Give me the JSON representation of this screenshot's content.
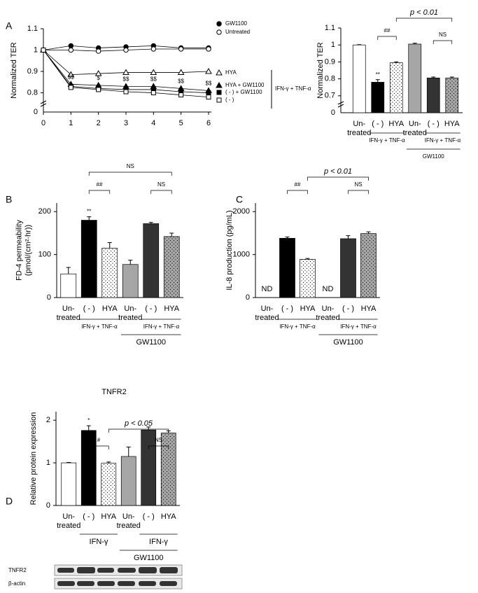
{
  "panel_labels": [
    "A",
    "B",
    "C",
    "D"
  ],
  "blot_labels": [
    "TNFR2",
    "β-actin"
  ],
  "chart_data": [
    {
      "type": "line",
      "ylabel": [
        "Normalized TER"
      ],
      "x": [
        0,
        1,
        2,
        3,
        4,
        5,
        6
      ],
      "xlim": [
        0,
        6
      ],
      "xticks": [
        0,
        1,
        2,
        3,
        4,
        5,
        6
      ],
      "ylim": [
        0.71,
        1.1
      ],
      "yticks": [
        0.8,
        0.9,
        1,
        1.1
      ],
      "y_origin_label": "0",
      "series": [
        {
          "name": "GW1100",
          "marker": "circle",
          "filled": true,
          "color": "#000000",
          "values": [
            1,
            1.02,
            1.01,
            1.015,
            1.02,
            1.01,
            1.01
          ]
        },
        {
          "name": "Untreated",
          "marker": "circle",
          "filled": false,
          "color": "#000000",
          "values": [
            1,
            1.0,
            0.995,
            1.0,
            1.005,
            1.005,
            1.005
          ]
        },
        {
          "name": "HYA",
          "marker": "triangle",
          "filled": false,
          "color": "#000000",
          "values": [
            1,
            0.885,
            0.89,
            0.895,
            0.895,
            0.895,
            0.9
          ]
        },
        {
          "name": "HYA + GW1100",
          "marker": "triangle",
          "filled": true,
          "color": "#000000",
          "values": [
            1,
            0.84,
            0.835,
            0.83,
            0.83,
            0.82,
            0.81
          ]
        },
        {
          "name": "( - ) + GW1100",
          "marker": "square",
          "filled": true,
          "color": "#000000",
          "values": [
            1,
            0.83,
            0.82,
            0.815,
            0.815,
            0.805,
            0.8
          ]
        },
        {
          "name": "( - )",
          "marker": "square",
          "filled": false,
          "color": "#000000",
          "values": [
            1,
            0.825,
            0.815,
            0.805,
            0.8,
            0.79,
            0.78
          ]
        }
      ],
      "annotations": [
        "$$",
        "$",
        "$$",
        "$$",
        "$$",
        "$$"
      ],
      "groups": [
        "IFN-γ + TNF-α"
      ]
    },
    {
      "type": "bar",
      "ylabel": [
        "Normalized TER"
      ],
      "categories": [
        [
          "Un-",
          "treated"
        ],
        [
          "( - )"
        ],
        [
          "HYA"
        ],
        [
          "Un-",
          "treated"
        ],
        [
          "( - )"
        ],
        [
          "HYA"
        ]
      ],
      "values": [
        1,
        0.78,
        0.895,
        1.005,
        0.805,
        0.805
      ],
      "errors": [
        0.002,
        0.015,
        0.005,
        0.005,
        0.006,
        0.006
      ],
      "colors": [
        "#ffffff",
        "#000000",
        "#ffffff",
        "#a6a6a6",
        "#333333",
        "#a6a6a6"
      ],
      "hatch": [
        false,
        false,
        true,
        false,
        false,
        true
      ],
      "ylim": [
        0.6,
        1.1
      ],
      "yticks": [
        0.7,
        0.8,
        0.9,
        1,
        1.1
      ],
      "y_origin_label": "0",
      "annotations": [
        "**",
        "##",
        "NS",
        "p < 0.01"
      ],
      "groups": [
        "IFN-γ + TNF-α",
        "IFN-γ + TNF-α",
        "GW1100"
      ]
    },
    {
      "type": "bar",
      "ylabel": [
        "FD-4 permeability",
        "(pmol/(cm²·hr))"
      ],
      "categories": [
        [
          "Un-",
          "treated"
        ],
        [
          "( - )"
        ],
        [
          "HYA"
        ],
        [
          "Un-",
          "treated"
        ],
        [
          "( - )"
        ],
        [
          "HYA"
        ]
      ],
      "values": [
        55,
        180,
        115,
        77,
        172,
        142
      ],
      "errors": [
        15,
        8,
        13,
        10,
        3,
        8
      ],
      "colors": [
        "#ffffff",
        "#000000",
        "#ffffff",
        "#a6a6a6",
        "#333333",
        "#a6a6a6"
      ],
      "hatch": [
        false,
        false,
        true,
        false,
        false,
        true
      ],
      "ylim": [
        0,
        220
      ],
      "yticks": [
        0,
        100,
        200
      ],
      "annotations": [
        "**",
        "##",
        "NS",
        "NS"
      ],
      "groups": [
        "IFN-γ + TNF-α",
        "IFN-γ + TNF-α",
        "GW1100"
      ]
    },
    {
      "type": "bar",
      "ylabel": [
        "IL-8 production (pg/mL)"
      ],
      "categories": [
        [
          "Un-",
          "treated"
        ],
        [
          "( - )"
        ],
        [
          "HYA"
        ],
        [
          "Un-",
          "treated"
        ],
        [
          "( - )"
        ],
        [
          "HYA"
        ]
      ],
      "values": [
        null,
        1380,
        890,
        null,
        1370,
        1490
      ],
      "errors": [
        null,
        30,
        20,
        null,
        70,
        40
      ],
      "value_labels": [
        "ND",
        null,
        null,
        "ND",
        null,
        null
      ],
      "colors": [
        "#ffffff",
        "#000000",
        "#ffffff",
        "#a6a6a6",
        "#333333",
        "#a6a6a6"
      ],
      "hatch": [
        false,
        false,
        true,
        false,
        false,
        true
      ],
      "ylim": [
        0,
        2200
      ],
      "yticks": [
        0,
        1000,
        2000
      ],
      "annotations": [
        "##",
        "p < 0.01",
        "NS"
      ],
      "groups": [
        "IFN-γ + TNF-α",
        "IFN-γ + TNF-α",
        "GW1100"
      ]
    },
    {
      "type": "bar",
      "title": "TNFR2",
      "ylabel": [
        "Relative protein expression"
      ],
      "categories": [
        [
          "Un-",
          "treated"
        ],
        [
          "( - )"
        ],
        [
          "HYA"
        ],
        [
          "Un-",
          "treated"
        ],
        [
          "( - )"
        ],
        [
          "HYA"
        ]
      ],
      "values": [
        1,
        1.76,
        0.99,
        1.15,
        1.77,
        1.7
      ],
      "errors": [
        0.01,
        0.11,
        0.03,
        0.22,
        0.07,
        0.05
      ],
      "colors": [
        "#ffffff",
        "#000000",
        "#ffffff",
        "#a6a6a6",
        "#333333",
        "#a6a6a6"
      ],
      "hatch": [
        false,
        false,
        true,
        false,
        false,
        true
      ],
      "ylim": [
        0,
        2.2
      ],
      "yticks": [
        0,
        1,
        2
      ],
      "annotations": [
        "*",
        "#",
        "p < 0.05",
        "NS"
      ],
      "groups": [
        "IFN-γ",
        "IFN-γ",
        "GW1100"
      ]
    }
  ]
}
